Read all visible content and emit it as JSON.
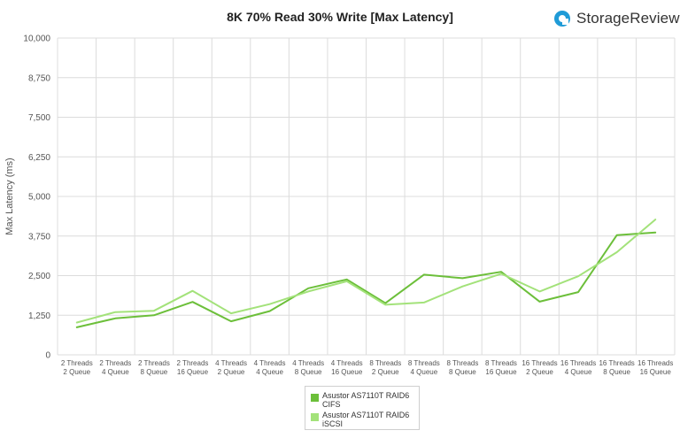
{
  "title": "8K 70% Read 30% Write [Max Latency]",
  "brand": {
    "name": "StorageReview",
    "icon": "storagereview-logo-icon",
    "color": "#1f9bd7"
  },
  "chart_data": {
    "type": "line",
    "title": "8K 70% Read 30% Write [Max Latency]",
    "xlabel": "",
    "ylabel": "Max Latency  (ms)",
    "ylim": [
      0,
      10000
    ],
    "yticks": [
      "0",
      "1,250",
      "2,500",
      "3,750",
      "5,000",
      "6,250",
      "7,500",
      "8,750",
      "10,000"
    ],
    "ytick_values": [
      0,
      1250,
      2500,
      3750,
      5000,
      6250,
      7500,
      8750,
      10000
    ],
    "grid": true,
    "legend_position": "bottom",
    "categories": [
      [
        "2 Threads",
        "2 Queue"
      ],
      [
        "2 Threads",
        "4 Queue"
      ],
      [
        "2 Threads",
        "8 Queue"
      ],
      [
        "2 Threads",
        "16 Queue"
      ],
      [
        "4 Threads",
        "2 Queue"
      ],
      [
        "4 Threads",
        "4 Queue"
      ],
      [
        "4 Threads",
        "8 Queue"
      ],
      [
        "4 Threads",
        "16 Queue"
      ],
      [
        "8 Threads",
        "2 Queue"
      ],
      [
        "8 Threads",
        "4 Queue"
      ],
      [
        "8 Threads",
        "8 Queue"
      ],
      [
        "8 Threads",
        "16 Queue"
      ],
      [
        "16 Threads",
        "2 Queue"
      ],
      [
        "16 Threads",
        "4 Queue"
      ],
      [
        "16 Threads",
        "8 Queue"
      ],
      [
        "16 Threads",
        "16 Queue"
      ]
    ],
    "series": [
      {
        "name": "Asustor AS7110T RAID6 CIFS",
        "color": "#6cbf3a",
        "values": [
          870,
          1150,
          1250,
          1670,
          1060,
          1380,
          2100,
          2380,
          1630,
          2530,
          2420,
          2620,
          1680,
          1980,
          3780,
          3860
        ]
      },
      {
        "name": "Asustor AS7110T RAID6 iSCSI",
        "color": "#a3e27a",
        "values": [
          1020,
          1350,
          1390,
          2020,
          1310,
          1600,
          2000,
          2320,
          1580,
          1650,
          2160,
          2560,
          2000,
          2480,
          3240,
          4270
        ]
      }
    ]
  }
}
